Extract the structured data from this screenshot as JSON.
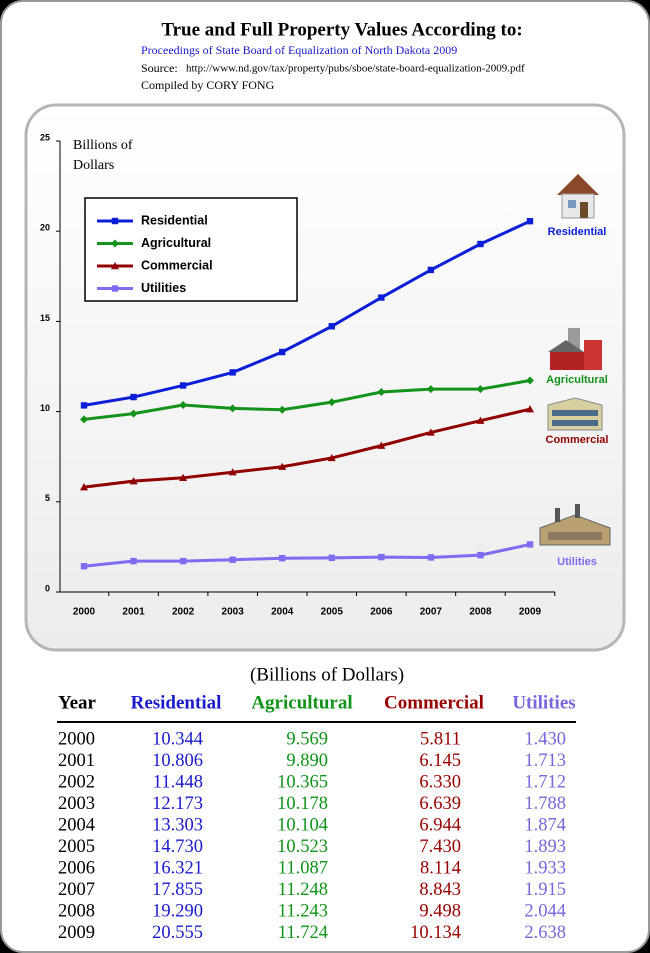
{
  "header": {
    "title": "True and Full Property Values According to:",
    "subtitle": "Proceedings of State Board of Equalization of North Dakota 2009",
    "source_label": "Source:",
    "source_url": "http://www.nd.gov/tax/property/pubs/sboe/state-board-equalization-2009.pdf",
    "compiled": "Compiled by CORY FONG"
  },
  "chart_data": {
    "type": "line",
    "y_label": [
      "Billions of",
      "Dollars"
    ],
    "categories": [
      "2000",
      "2001",
      "2002",
      "2003",
      "2004",
      "2005",
      "2006",
      "2007",
      "2008",
      "2009"
    ],
    "ylim": [
      0,
      25
    ],
    "yticks": [
      0,
      5,
      10,
      15,
      20,
      25
    ],
    "legend": "upper left",
    "series": [
      {
        "name": "Residential",
        "color": "#0c1ed8",
        "marker": "square",
        "values": [
          10.344,
          10.806,
          11.448,
          12.173,
          13.303,
          14.73,
          16.321,
          17.855,
          19.29,
          20.555
        ]
      },
      {
        "name": "Agricultural",
        "color": "#15921b",
        "marker": "diamond",
        "values": [
          9.569,
          9.89,
          10.365,
          10.178,
          10.104,
          10.523,
          11.087,
          11.248,
          11.243,
          11.724
        ]
      },
      {
        "name": "Commercial",
        "color": "#900000",
        "marker": "triangle",
        "values": [
          5.811,
          6.145,
          6.33,
          6.639,
          6.944,
          7.43,
          8.114,
          8.843,
          9.498,
          10.134
        ]
      },
      {
        "name": "Utilities",
        "color": "#7b6cf0",
        "marker": "square",
        "values": [
          1.43,
          1.713,
          1.712,
          1.788,
          1.874,
          1.893,
          1.933,
          1.915,
          2.044,
          2.638
        ]
      }
    ]
  },
  "table": {
    "caption": "(Billions of Dollars)",
    "columns": [
      "Year",
      "Residential",
      "Agricultural",
      "Commercial",
      "Utilities"
    ],
    "rows": [
      [
        "2000",
        "10.344",
        "9.569",
        "5.811",
        "1.430"
      ],
      [
        "2001",
        "10.806",
        "9.890",
        "6.145",
        "1.713"
      ],
      [
        "2002",
        "11.448",
        "10.365",
        "6.330",
        "1.712"
      ],
      [
        "2003",
        "12.173",
        "10.178",
        "6.639",
        "1.788"
      ],
      [
        "2004",
        "13.303",
        "10.104",
        "6.944",
        "1.874"
      ],
      [
        "2005",
        "14.730",
        "10.523",
        "7.430",
        "1.893"
      ],
      [
        "2006",
        "16.321",
        "11.087",
        "8.114",
        "1.933"
      ],
      [
        "2007",
        "17.855",
        "11.248",
        "8.843",
        "1.915"
      ],
      [
        "2008",
        "19.290",
        "11.243",
        "9.498",
        "2.044"
      ],
      [
        "2009",
        "20.555",
        "11.724",
        "10.134",
        "2.638"
      ]
    ]
  }
}
